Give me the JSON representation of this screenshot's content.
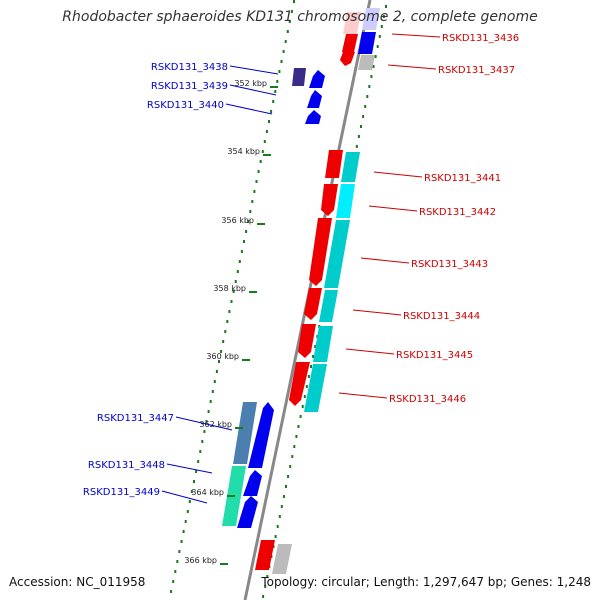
{
  "title": "Rhodobacter sphaeroides KD131 chromosome 2, complete genome",
  "footer": {
    "accession": "Accession: NC_011958",
    "summary": "Topology: circular; Length: 1,297,647 bp; Genes: 1,248"
  },
  "colors": {
    "backbone": "#888888",
    "tick": "#1a7a1a",
    "left_label": "#0000cc",
    "right_label": "#cc0000",
    "red_arrow": "#ee0000",
    "blue_arrow": "#0000ee",
    "cyan_block": "#00cccc",
    "steel_block": "#4a7fb0",
    "green_block": "#22ddaa",
    "gray_block": "#bbbbbb"
  },
  "kbp_ticks": [
    "352 kbp",
    "354 kbp",
    "356 kbp",
    "358 kbp",
    "360 kbp",
    "362 kbp",
    "364 kbp",
    "366 kbp"
  ],
  "left_genes": [
    "RSKD131_3438",
    "RSKD131_3439",
    "RSKD131_3440",
    "RSKD131_3447",
    "RSKD131_3448",
    "RSKD131_3449"
  ],
  "right_genes": [
    "RSKD131_3436",
    "RSKD131_3437",
    "RSKD131_3441",
    "RSKD131_3442",
    "RSKD131_3443",
    "RSKD131_3444",
    "RSKD131_3445",
    "RSKD131_3446"
  ]
}
